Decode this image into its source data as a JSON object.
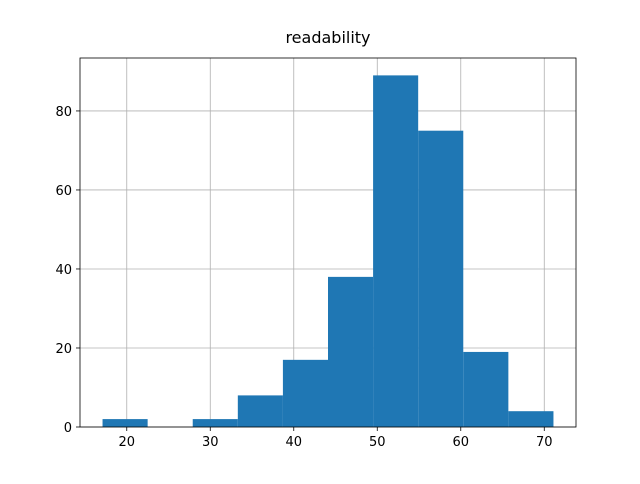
{
  "chart_data": {
    "type": "histogram",
    "title": "readability",
    "bins": [
      17.1,
      22.5,
      27.9,
      33.3,
      38.7,
      44.1,
      49.5,
      54.9,
      60.3,
      65.7,
      71.1
    ],
    "values": [
      2,
      0,
      2,
      8,
      17,
      38,
      89,
      75,
      19,
      4
    ],
    "color": "#1f77b4",
    "xlim": [
      14.4,
      73.8
    ],
    "xticks": [
      20,
      30,
      40,
      50,
      60,
      70
    ],
    "ylim": [
      0,
      93.4
    ],
    "yticks": [
      0,
      20,
      40,
      60,
      80
    ],
    "grid": true
  }
}
